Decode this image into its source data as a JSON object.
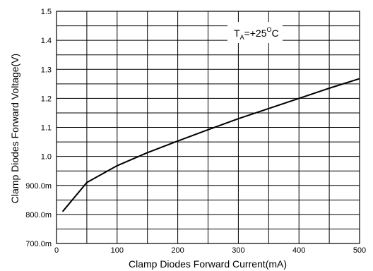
{
  "chart_data": {
    "type": "line",
    "title": "",
    "xlabel": "Clamp Diodes Forward Current(mA)",
    "ylabel": "Clamp Diodes Forward Voltage(V)",
    "xlim": [
      0,
      500
    ],
    "ylim": [
      0.7,
      1.5
    ],
    "x_ticks": [
      0,
      100,
      200,
      300,
      400,
      500
    ],
    "x_tick_labels": [
      "0",
      "100",
      "200",
      "300",
      "400",
      "500"
    ],
    "y_ticks": [
      0.7,
      0.8,
      0.9,
      1.0,
      1.1,
      1.2,
      1.3,
      1.4,
      1.5
    ],
    "y_tick_labels": [
      "700.0m",
      "800.0m",
      "900.0m",
      "1.0",
      "1.1",
      "1.2",
      "1.3",
      "1.4",
      "1.5"
    ],
    "grid": true,
    "x_minor_grid_step": 50,
    "y_minor_grid_step": 0.05,
    "annotation": {
      "main": "T",
      "subscript": "A",
      "value": "=+25",
      "superscript": "O",
      "unit": "C"
    },
    "series": [
      {
        "x": [
          10,
          50,
          100,
          150,
          200,
          250,
          300,
          350,
          400,
          450,
          500
        ],
        "y": [
          0.81,
          0.91,
          0.968,
          1.013,
          1.053,
          1.092,
          1.13,
          1.165,
          1.2,
          1.235,
          1.268
        ]
      }
    ]
  }
}
